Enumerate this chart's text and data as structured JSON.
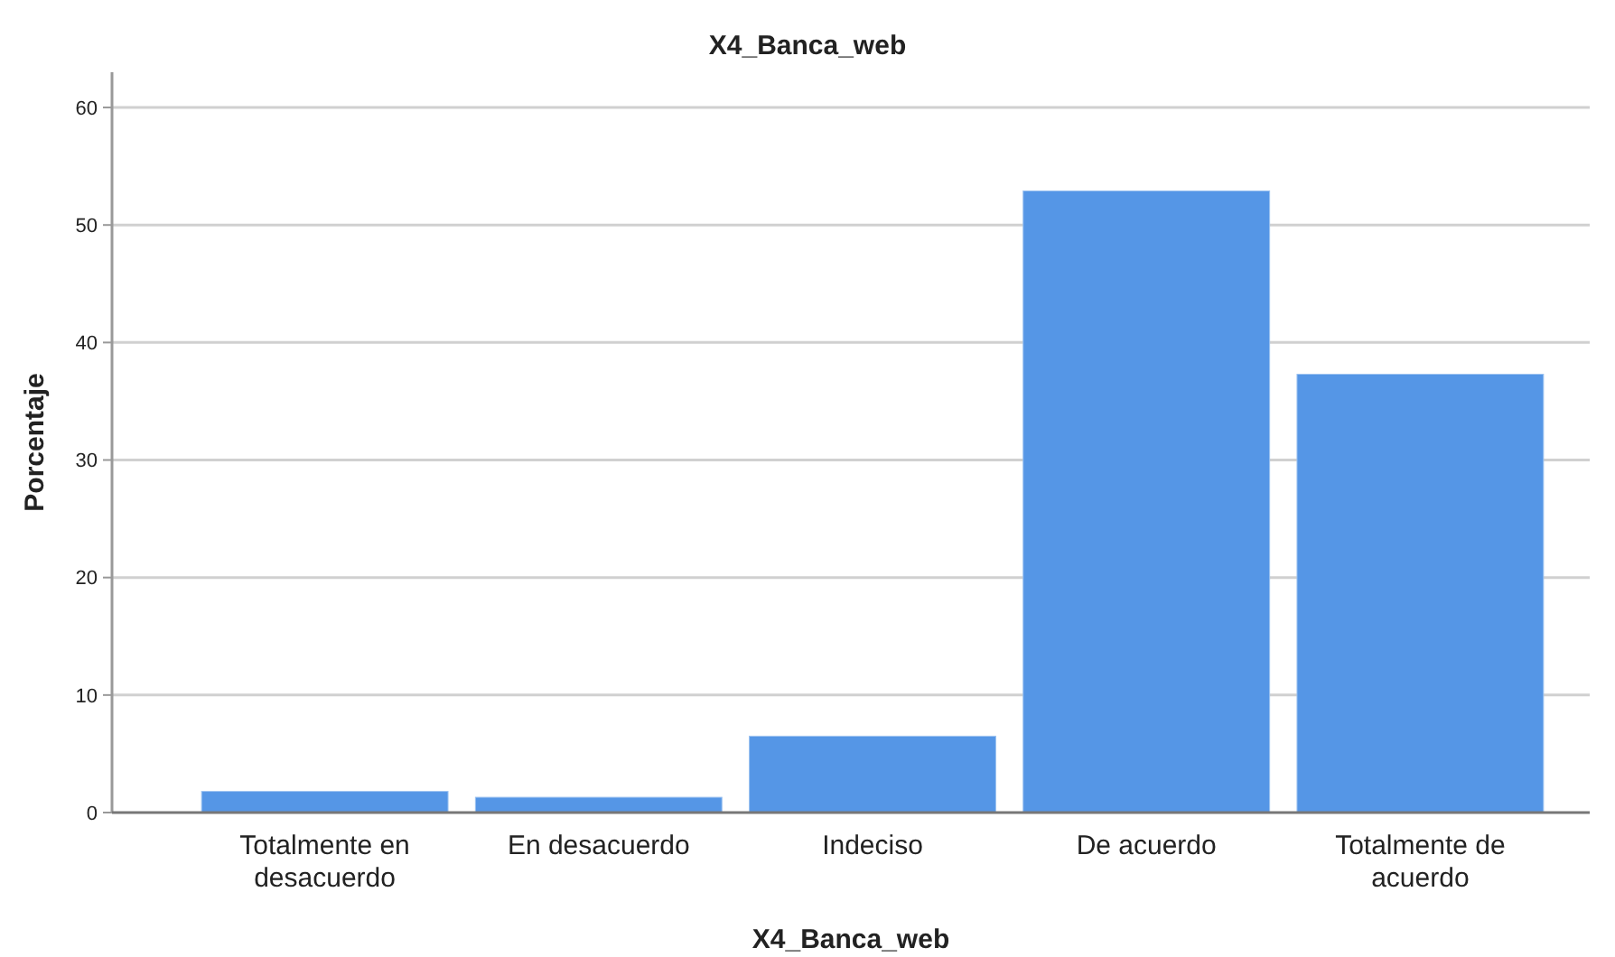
{
  "chart_data": {
    "type": "bar",
    "title": "X4_Banca_web",
    "xlabel": "X4_Banca_web",
    "ylabel": "Porcentaje",
    "categories": [
      "Totalmente en desacuerdo",
      "En desacuerdo",
      "Indeciso",
      "De acuerdo",
      "Totalmente de acuerdo"
    ],
    "values": [
      1.8,
      1.3,
      6.5,
      52.9,
      37.3
    ],
    "color": "#5596e6",
    "ylim": [
      0,
      63
    ],
    "yticks": [
      0,
      10,
      20,
      30,
      40,
      50,
      60
    ],
    "grid": "y"
  }
}
